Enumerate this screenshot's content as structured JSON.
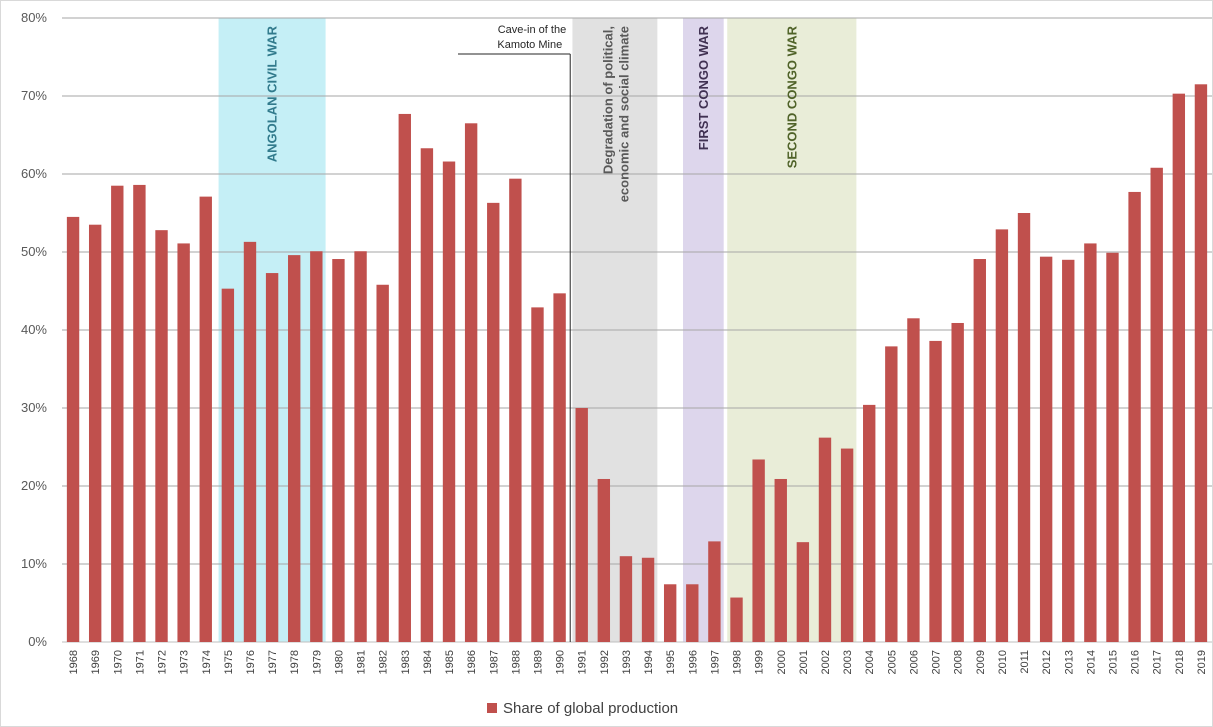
{
  "chart_data": {
    "type": "bar",
    "title": "",
    "xlabel": "",
    "ylabel": "",
    "ylim": [
      0,
      80
    ],
    "y_ticks": [
      "0%",
      "10%",
      "20%",
      "30%",
      "40%",
      "50%",
      "60%",
      "70%",
      "80%"
    ],
    "grid": true,
    "legend_position": "bottom",
    "bar_color": "#c0504d",
    "categories": [
      "1968",
      "1969",
      "1970",
      "1971",
      "1972",
      "1973",
      "1974",
      "1975",
      "1976",
      "1977",
      "1978",
      "1979",
      "1980",
      "1981",
      "1982",
      "1983",
      "1984",
      "1985",
      "1986",
      "1987",
      "1988",
      "1989",
      "1990",
      "1991",
      "1992",
      "1993",
      "1994",
      "1995",
      "1996",
      "1997",
      "1998",
      "1999",
      "2000",
      "2001",
      "2002",
      "2003",
      "2004",
      "2005",
      "2006",
      "2007",
      "2008",
      "2009",
      "2010",
      "2011",
      "2012",
      "2013",
      "2014",
      "2015",
      "2016",
      "2017",
      "2018",
      "2019"
    ],
    "series": [
      {
        "name": "Share of global production",
        "unit": "%",
        "values": [
          54.5,
          53.5,
          58.5,
          58.6,
          52.8,
          51.1,
          57.1,
          45.3,
          51.3,
          47.3,
          49.6,
          50.1,
          49.1,
          50.1,
          45.8,
          67.7,
          63.3,
          61.6,
          66.5,
          56.3,
          59.4,
          42.9,
          44.7,
          30.0,
          20.9,
          11.0,
          10.8,
          7.4,
          7.4,
          12.9,
          5.7,
          23.4,
          20.9,
          12.8,
          26.2,
          24.8,
          30.4,
          37.9,
          41.5,
          38.6,
          40.9,
          49.1,
          52.9,
          55.0,
          49.4,
          49.0,
          51.1,
          49.9,
          57.7,
          60.8,
          70.3,
          71.5
        ]
      }
    ],
    "bands": [
      {
        "label": "ANGOLAN CIVIL WAR",
        "from": "1975",
        "to": "1979",
        "fill": "#c5eff6",
        "text_color": "#317a8c"
      },
      {
        "label": "Degradation of political,\neconomic and social climate",
        "from": "1991",
        "to": "1994",
        "fill": "#e1e1e1",
        "text_color": "#595959"
      },
      {
        "label": "FIRST CONGO WAR",
        "from": "1996",
        "to": "1997",
        "fill": "#ddd6ec",
        "text_color": "#403152"
      },
      {
        "label": "SECOND CONGO WAR",
        "from": "1998",
        "to": "2003",
        "fill": "#e9edd8",
        "text_color": "#4f6228"
      }
    ],
    "annotations": [
      {
        "text": "Cave-in of the\nKamoto Mine",
        "x": "1990"
      }
    ]
  }
}
